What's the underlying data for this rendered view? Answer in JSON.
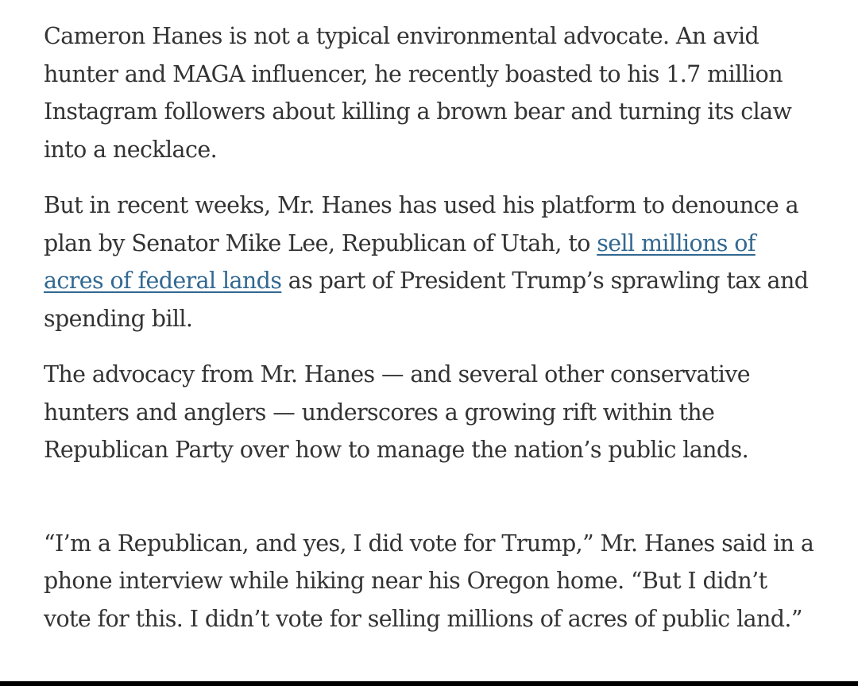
{
  "article": {
    "paragraphs": [
      {
        "text": "Cameron Hanes is not a typical environmental advocate. An avid hunter and MAGA influencer, he recently boasted to his 1.7 million Instagram followers about killing a brown bear and turning its claw into a necklace."
      },
      {
        "before": "But in recent weeks, Mr. Hanes has used his platform to denounce a plan by Senator Mike Lee, Republican of Utah, to ",
        "link": "sell millions of acres of federal lands",
        "after": " as part of President Trump’s sprawling tax and spending bill."
      },
      {
        "text": "The advocacy from Mr. Hanes — and several other conservative hunters and anglers — underscores a growing rift within the Republican Party over how to manage the nation’s public lands."
      },
      {
        "text": "“I’m a Republican, and yes, I did vote for Trump,” Mr. Hanes said in a phone interview while hiking near his Oregon home. “But I didn’t vote for this. I didn’t vote for selling millions of acres of public land.”"
      }
    ]
  },
  "colors": {
    "body_text": "#333333",
    "link": "#326891",
    "background": "#ffffff"
  }
}
